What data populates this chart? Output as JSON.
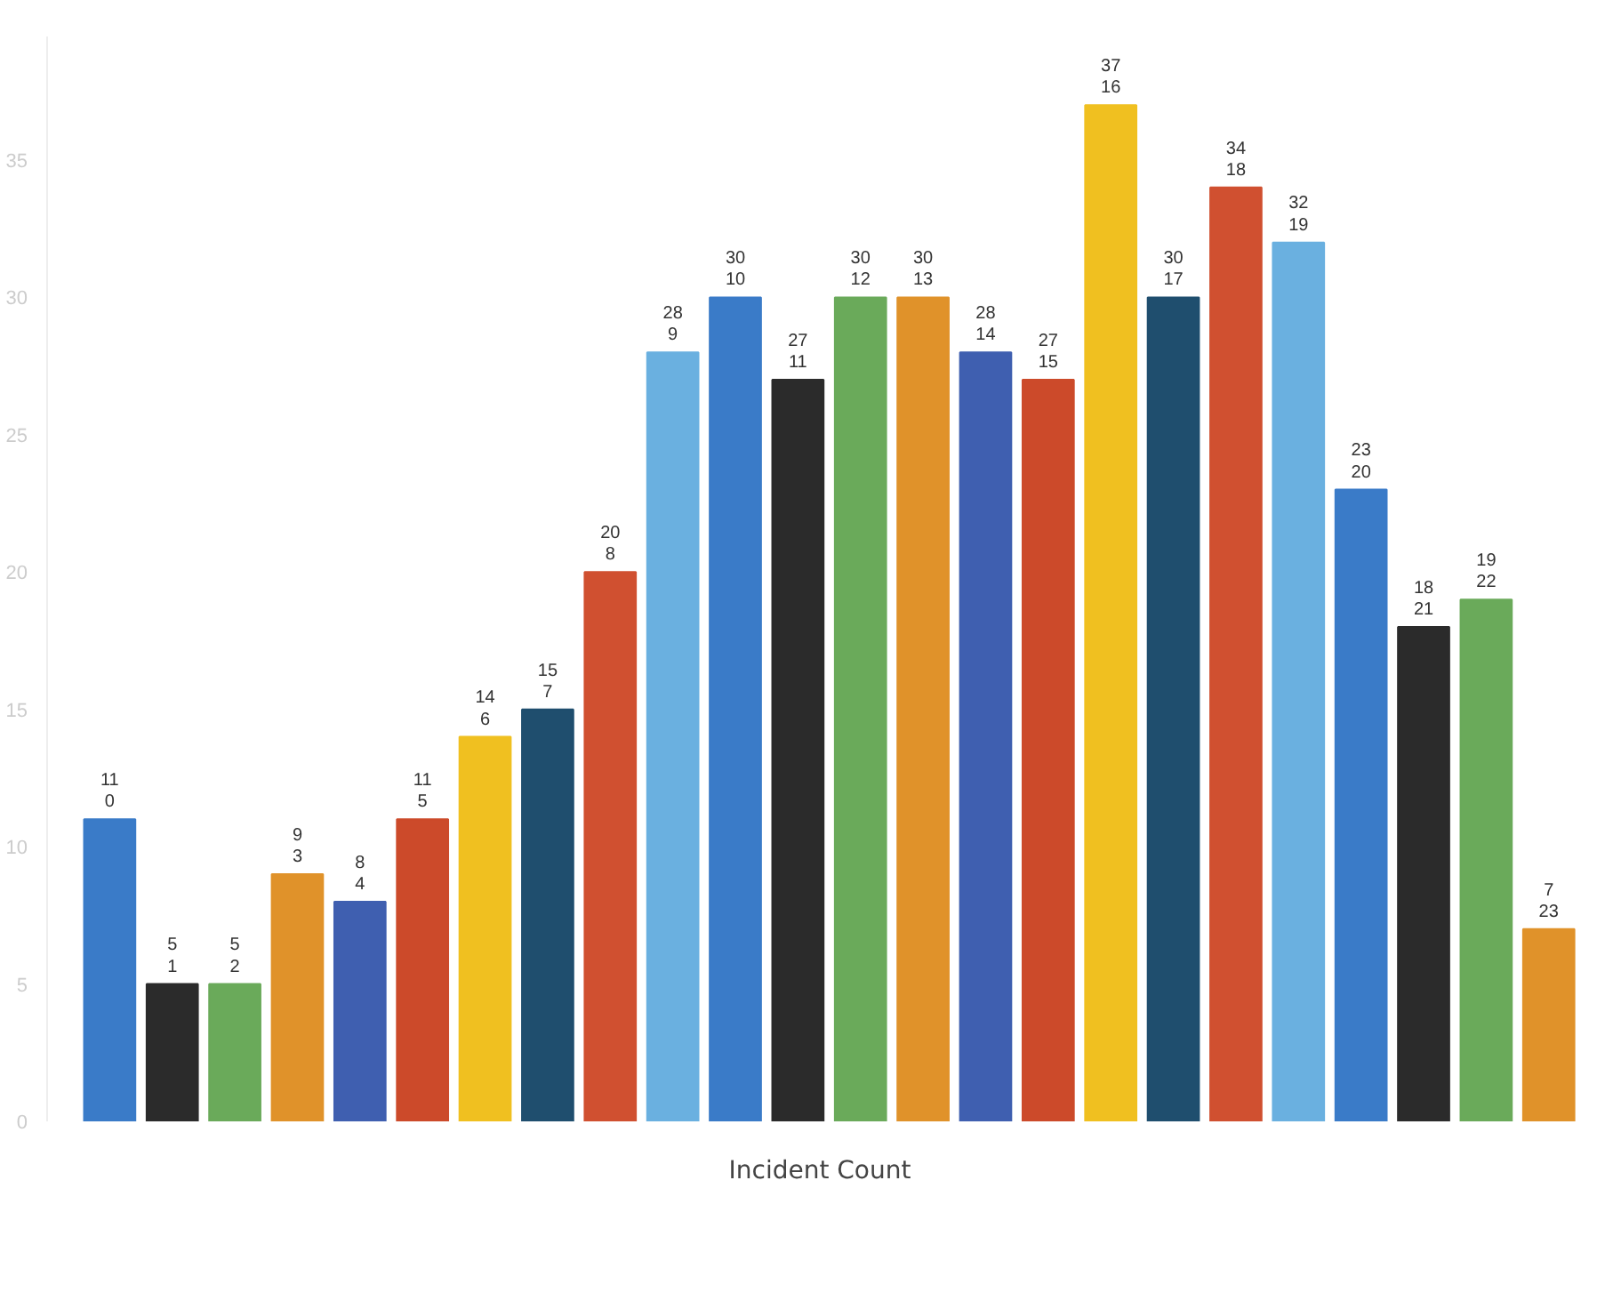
{
  "chart_data": {
    "type": "bar",
    "xlabel": "Incident Count",
    "categories": [
      "0",
      "1",
      "2",
      "3",
      "4",
      "5",
      "6",
      "7",
      "8",
      "9",
      "10",
      "11",
      "12",
      "13",
      "14",
      "15",
      "16",
      "17",
      "18",
      "19",
      "20",
      "21",
      "22",
      "23"
    ],
    "values": [
      11,
      5,
      5,
      9,
      8,
      11,
      14,
      15,
      20,
      28,
      30,
      27,
      30,
      30,
      28,
      27,
      37,
      30,
      34,
      32,
      23,
      18,
      19,
      7
    ],
    "colors": [
      "#3a7bc8",
      "#2b2b2b",
      "#6aaa5a",
      "#e0922a",
      "#3f5fb0",
      "#cc4a2a",
      "#f0c020",
      "#1f4e6e",
      "#d05030",
      "#6ab0e0",
      "#3a7bc8",
      "#2b2b2b",
      "#6aaa5a",
      "#e0922a",
      "#3f5fb0",
      "#cc4a2a",
      "#f0c020",
      "#1f4e6e",
      "#d05030",
      "#6ab0e0",
      "#3a7bc8",
      "#2b2b2b",
      "#6aaa5a",
      "#e0922a"
    ],
    "ylim": [
      0,
      39.5
    ],
    "yticks": [
      0,
      5,
      10,
      15,
      20,
      25,
      30,
      35
    ],
    "grid": false,
    "data_labels": true
  }
}
